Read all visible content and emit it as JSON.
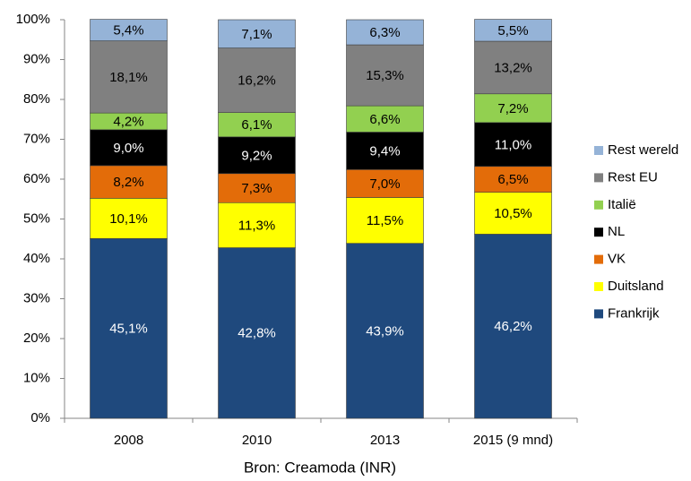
{
  "chart_data": {
    "type": "stacked_bar",
    "x_label": "Bron: Creamoda (INR)",
    "categories": [
      "2008",
      "2010",
      "2013",
      "2015 (9 mnd)"
    ],
    "series": [
      {
        "name": "Frankrijk",
        "color": "#1f497d",
        "label_color": "#ffffff",
        "values": [
          45.1,
          42.8,
          43.9,
          46.2
        ],
        "value_labels": [
          "45,1%",
          "42,8%",
          "43,9%",
          "46,2%"
        ]
      },
      {
        "name": "Duitsland",
        "color": "#ffff00",
        "label_color": "#000000",
        "values": [
          10.1,
          11.3,
          11.5,
          10.5
        ],
        "value_labels": [
          "10,1%",
          "11,3%",
          "11,5%",
          "10,5%"
        ]
      },
      {
        "name": "VK",
        "color": "#e36c09",
        "label_color": "#000000",
        "values": [
          8.2,
          7.3,
          7.0,
          6.5
        ],
        "value_labels": [
          "8,2%",
          "7,3%",
          "7,0%",
          "6,5%"
        ]
      },
      {
        "name": "NL",
        "color": "#000000",
        "label_color": "#ffffff",
        "values": [
          9.0,
          9.2,
          9.4,
          11.0
        ],
        "value_labels": [
          "9,0%",
          "9,2%",
          "9,4%",
          "11,0%"
        ]
      },
      {
        "name": "Italië",
        "color": "#92d050",
        "label_color": "#000000",
        "values": [
          4.2,
          6.1,
          6.6,
          7.2
        ],
        "value_labels": [
          "4,2%",
          "6,1%",
          "6,6%",
          "7,2%"
        ]
      },
      {
        "name": "Rest EU",
        "color": "#808080",
        "label_color": "#000000",
        "values": [
          18.1,
          16.2,
          15.3,
          13.2
        ],
        "value_labels": [
          "18,1%",
          "16,2%",
          "15,3%",
          "13,2%"
        ]
      },
      {
        "name": "Rest wereld",
        "color": "#95b3d7",
        "label_color": "#000000",
        "values": [
          5.4,
          7.1,
          6.3,
          5.5
        ],
        "value_labels": [
          "5,4%",
          "7,1%",
          "6,3%",
          "5,5%"
        ]
      }
    ],
    "ylim": [
      0,
      100
    ],
    "yticks": [
      {
        "value": 0,
        "label": "0%"
      },
      {
        "value": 10,
        "label": "10%"
      },
      {
        "value": 20,
        "label": "20%"
      },
      {
        "value": 30,
        "label": "30%"
      },
      {
        "value": 40,
        "label": "40%"
      },
      {
        "value": 50,
        "label": "50%"
      },
      {
        "value": 60,
        "label": "60%"
      },
      {
        "value": 70,
        "label": "70%"
      },
      {
        "value": 80,
        "label": "80%"
      },
      {
        "value": 90,
        "label": "90%"
      },
      {
        "value": 100,
        "label": "100%"
      }
    ],
    "grid": false,
    "legend": "right"
  }
}
